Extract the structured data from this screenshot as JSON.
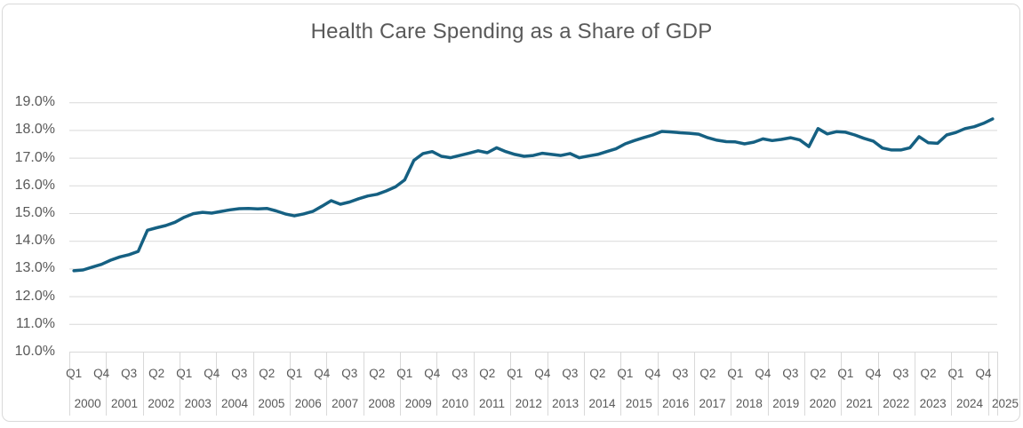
{
  "chart_data": {
    "type": "line",
    "title": "Health Care Spending as a Share of GDP",
    "frequency": "quarterly",
    "start_period": "2000 Q1",
    "end_period": "2025 Q1",
    "unit": "% of GDP",
    "values": [
      12.92,
      12.95,
      13.05,
      13.15,
      13.3,
      13.42,
      13.5,
      13.62,
      14.38,
      14.47,
      14.55,
      14.67,
      14.85,
      14.98,
      15.03,
      15.0,
      15.06,
      15.12,
      15.16,
      15.17,
      15.15,
      15.17,
      15.08,
      14.97,
      14.9,
      14.97,
      15.06,
      15.25,
      15.45,
      15.32,
      15.4,
      15.52,
      15.62,
      15.68,
      15.8,
      15.95,
      16.2,
      16.9,
      17.15,
      17.22,
      17.05,
      17.0,
      17.08,
      17.16,
      17.25,
      17.18,
      17.36,
      17.22,
      17.12,
      17.05,
      17.08,
      17.16,
      17.12,
      17.08,
      17.15,
      17.0,
      17.06,
      17.12,
      17.22,
      17.32,
      17.5,
      17.62,
      17.72,
      17.82,
      17.95,
      17.93,
      17.9,
      17.88,
      17.85,
      17.72,
      17.63,
      17.58,
      17.57,
      17.5,
      17.56,
      17.68,
      17.62,
      17.66,
      17.72,
      17.64,
      17.4,
      18.05,
      17.86,
      17.94,
      17.92,
      17.82,
      17.7,
      17.6,
      17.35,
      17.28,
      17.28,
      17.36,
      17.76,
      17.54,
      17.52,
      17.82,
      17.91,
      18.05,
      18.12,
      18.24,
      18.4
    ],
    "y_axis": {
      "min": 10,
      "max": 19,
      "step": 1,
      "tick_labels": [
        "19.0%",
        "18.0%",
        "17.0%",
        "16.0%",
        "15.0%",
        "14.0%",
        "13.0%",
        "12.0%",
        "11.0%",
        "10.0%"
      ]
    },
    "x_axis": {
      "quarter_tick_labels": [
        "Q1",
        "Q4",
        "Q3",
        "Q2",
        "Q1",
        "Q4",
        "Q3",
        "Q2",
        "Q1",
        "Q4",
        "Q3",
        "Q2",
        "Q1",
        "Q4",
        "Q3",
        "Q2",
        "Q1",
        "Q4",
        "Q3",
        "Q2",
        "Q1",
        "Q4",
        "Q3",
        "Q2",
        "Q1",
        "Q4",
        "Q3",
        "Q2",
        "Q1",
        "Q4",
        "Q3",
        "Q2",
        "Q1",
        "Q4"
      ],
      "year_labels": [
        "2000",
        "2001",
        "2002",
        "2003",
        "2004",
        "2005",
        "2006",
        "2007",
        "2008",
        "2009",
        "2010",
        "2011",
        "2012",
        "2013",
        "2014",
        "2015",
        "2016",
        "2017",
        "2018",
        "2019",
        "2020",
        "2021",
        "2022",
        "2023",
        "2024",
        "2025"
      ]
    },
    "legend": "none",
    "grid": "horizontal",
    "colors": {
      "line": "#156082",
      "gridline": "#D9D9D9",
      "label_text": "#595959",
      "background": "#FFFFFF"
    }
  }
}
